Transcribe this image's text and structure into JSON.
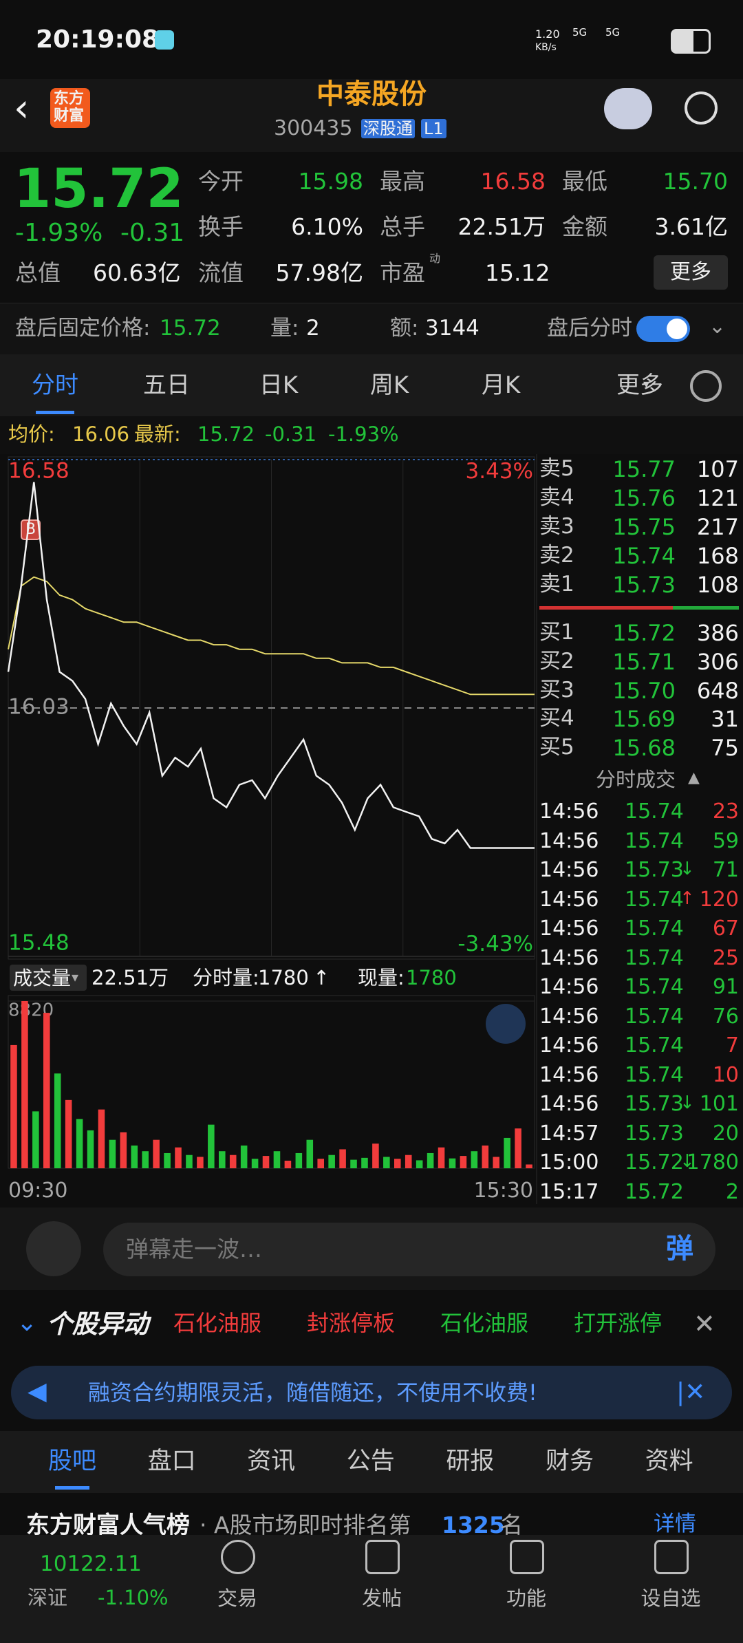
{
  "status": {
    "time": "20:19:08",
    "speed": "1.20",
    "speed_unit": "KB/s",
    "net1": "5G",
    "net2": "5G"
  },
  "header": {
    "logo_line1": "东方",
    "logo_line2": "财富",
    "title": "中泰股份",
    "code": "300435",
    "badge": "深股通",
    "level": "L1"
  },
  "quote": {
    "price": "15.72",
    "change_pct": "-1.93%",
    "change": "-0.31",
    "open_label": "今开",
    "open": "15.98",
    "high_label": "最高",
    "high": "16.58",
    "low_label": "最低",
    "low": "15.70",
    "turnover_label": "换手",
    "turnover": "6.10%",
    "volume_label": "总手",
    "volume": "22.51万",
    "amount_label": "金额",
    "amount": "3.61亿",
    "mcap_label": "总值",
    "mcap": "60.63亿",
    "float_label": "流值",
    "float": "57.98亿",
    "pe_label": "市盈",
    "pe_sup": "动",
    "pe": "15.12",
    "more": "更多"
  },
  "after_hours": {
    "price_label": "盘后固定价格:",
    "price": "15.72",
    "vol_label": "量:",
    "vol": "2",
    "amt_label": "额:",
    "amt": "3144",
    "toggle_label": "盘后分时"
  },
  "tabs": [
    "分时",
    "五日",
    "日K",
    "周K",
    "月K",
    "更多"
  ],
  "summary": {
    "avg_label": "均价:",
    "avg": "16.06",
    "last_label": "最新:",
    "last": "15.72",
    "change": "-0.31",
    "change_pct": "-1.93%"
  },
  "intraday": {
    "type": "line",
    "ylim": [
      15.48,
      16.58
    ],
    "yticks": [
      16.58,
      16.03,
      15.48
    ],
    "pct_top": "3.43%",
    "pct_bottom": "-3.43%",
    "marker": "B",
    "price": {
      "color": "#f2f2f2",
      "values": [
        16.11,
        16.3,
        16.53,
        16.27,
        16.11,
        16.09,
        16.05,
        15.95,
        16.04,
        15.99,
        15.95,
        16.02,
        15.88,
        15.92,
        15.9,
        15.94,
        15.83,
        15.81,
        15.86,
        15.87,
        15.83,
        15.88,
        15.92,
        15.96,
        15.88,
        15.86,
        15.82,
        15.76,
        15.83,
        15.86,
        15.81,
        15.8,
        15.79,
        15.74,
        15.73,
        15.76,
        15.72,
        15.72,
        15.72,
        15.72,
        15.72,
        15.72
      ]
    },
    "avg": {
      "color": "#e6d96a",
      "values": [
        16.16,
        16.3,
        16.32,
        16.31,
        16.28,
        16.27,
        16.25,
        16.24,
        16.23,
        16.22,
        16.22,
        16.21,
        16.2,
        16.19,
        16.18,
        16.18,
        16.17,
        16.17,
        16.16,
        16.16,
        16.15,
        16.15,
        16.15,
        16.15,
        16.14,
        16.14,
        16.13,
        16.13,
        16.13,
        16.12,
        16.12,
        16.11,
        16.1,
        16.09,
        16.08,
        16.07,
        16.06,
        16.06,
        16.06,
        16.06,
        16.06,
        16.06
      ]
    }
  },
  "volume": {
    "type": "bar",
    "label": "成交量",
    "total": "22.51万",
    "tick_label": "分时量:",
    "tick_vol": "1780",
    "tick_arrow": "↑",
    "now_label": "现量:",
    "now": "1780",
    "ylim": [
      0,
      8820
    ],
    "yticks": [
      8820
    ],
    "time_labels": [
      "09:30",
      "15:30"
    ],
    "values": [
      6500,
      8820,
      3000,
      8200,
      5000,
      3600,
      2600,
      2000,
      3100,
      1500,
      1900,
      1200,
      900,
      1500,
      800,
      1100,
      700,
      600,
      2300,
      900,
      700,
      1200,
      500,
      650,
      900,
      400,
      800,
      1500,
      500,
      700,
      1000,
      450,
      550,
      1300,
      600,
      500,
      700,
      420,
      800,
      1100,
      520,
      650,
      900,
      1200,
      600,
      1600,
      2100,
      200
    ],
    "colors": [
      "#f23c3c",
      "#f23c3c",
      "#22c33a",
      "#f23c3c",
      "#22c33a",
      "#f23c3c",
      "#22c33a",
      "#22c33a",
      "#f23c3c",
      "#22c33a",
      "#f23c3c",
      "#22c33a",
      "#22c33a",
      "#f23c3c",
      "#22c33a",
      "#f23c3c",
      "#22c33a",
      "#f23c3c",
      "#22c33a",
      "#22c33a",
      "#f23c3c",
      "#22c33a",
      "#22c33a",
      "#f23c3c",
      "#22c33a",
      "#f23c3c",
      "#22c33a",
      "#22c33a",
      "#f23c3c",
      "#22c33a",
      "#f23c3c",
      "#22c33a",
      "#22c33a",
      "#f23c3c",
      "#22c33a",
      "#f23c3c",
      "#f23c3c",
      "#22c33a",
      "#22c33a",
      "#f23c3c",
      "#22c33a",
      "#f23c3c",
      "#22c33a",
      "#f23c3c",
      "#f23c3c",
      "#22c33a",
      "#f23c3c",
      "#f23c3c"
    ]
  },
  "order_book": {
    "asks": [
      {
        "label": "卖5",
        "price": "15.77",
        "vol": "107"
      },
      {
        "label": "卖4",
        "price": "15.76",
        "vol": "121"
      },
      {
        "label": "卖3",
        "price": "15.75",
        "vol": "217"
      },
      {
        "label": "卖2",
        "price": "15.74",
        "vol": "168"
      },
      {
        "label": "卖1",
        "price": "15.73",
        "vol": "108"
      }
    ],
    "bids": [
      {
        "label": "买1",
        "price": "15.72",
        "vol": "386"
      },
      {
        "label": "买2",
        "price": "15.71",
        "vol": "306"
      },
      {
        "label": "买3",
        "price": "15.70",
        "vol": "648"
      },
      {
        "label": "买4",
        "price": "15.69",
        "vol": "31"
      },
      {
        "label": "买5",
        "price": "15.68",
        "vol": "75"
      }
    ]
  },
  "trades": {
    "title": "分时成交",
    "rows": [
      {
        "time": "14:56",
        "price": "15.74",
        "arrow": "",
        "vol": "23",
        "color": "#f23c3c"
      },
      {
        "time": "14:56",
        "price": "15.74",
        "arrow": "",
        "vol": "59",
        "color": "#22c33a"
      },
      {
        "time": "14:56",
        "price": "15.73",
        "arrow": "↓",
        "vol": "71",
        "color": "#22c33a"
      },
      {
        "time": "14:56",
        "price": "15.74",
        "arrow": "↑",
        "vol": "120",
        "color": "#f23c3c"
      },
      {
        "time": "14:56",
        "price": "15.74",
        "arrow": "",
        "vol": "67",
        "color": "#f23c3c"
      },
      {
        "time": "14:56",
        "price": "15.74",
        "arrow": "",
        "vol": "25",
        "color": "#f23c3c"
      },
      {
        "time": "14:56",
        "price": "15.74",
        "arrow": "",
        "vol": "91",
        "color": "#22c33a"
      },
      {
        "time": "14:56",
        "price": "15.74",
        "arrow": "",
        "vol": "76",
        "color": "#22c33a"
      },
      {
        "time": "14:56",
        "price": "15.74",
        "arrow": "",
        "vol": "7",
        "color": "#f23c3c"
      },
      {
        "time": "14:56",
        "price": "15.74",
        "arrow": "",
        "vol": "10",
        "color": "#f23c3c"
      },
      {
        "time": "14:56",
        "price": "15.73",
        "arrow": "↓",
        "vol": "101",
        "color": "#22c33a"
      },
      {
        "time": "14:57",
        "price": "15.73",
        "arrow": "",
        "vol": "20",
        "color": "#22c33a"
      },
      {
        "time": "15:00",
        "price": "15.72",
        "arrow": "↓",
        "vol": "1780",
        "color": "#22c33a"
      },
      {
        "time": "15:17",
        "price": "15.72",
        "arrow": "",
        "vol": "2",
        "color": "#22c33a"
      }
    ]
  },
  "comment": {
    "placeholder": "弹幕走一波…",
    "button": "弹"
  },
  "alerts": {
    "title": "个股异动",
    "items": [
      {
        "text": "石化油服",
        "color": "#f23c3c"
      },
      {
        "text": "封涨停板",
        "color": "#f23c3c"
      },
      {
        "text": "石化油服",
        "color": "#22c33a"
      },
      {
        "text": "打开涨停",
        "color": "#22c33a"
      }
    ]
  },
  "banner": {
    "text": "融资合约期限灵活，随借随还，不使用不收费!"
  },
  "bottom_tabs": [
    "股吧",
    "盘口",
    "资讯",
    "公告",
    "研报",
    "财务",
    "资料"
  ],
  "ranking": {
    "title": "东方财富人气榜",
    "text": "· A股市场即时排名第",
    "rank": "1325",
    "suffix": "名",
    "link": "详情"
  },
  "nav": {
    "index_value": "10122.11",
    "index_name": "深证",
    "index_change": "-1.10%",
    "items": [
      "交易",
      "发帖",
      "功能",
      "设自选"
    ]
  }
}
